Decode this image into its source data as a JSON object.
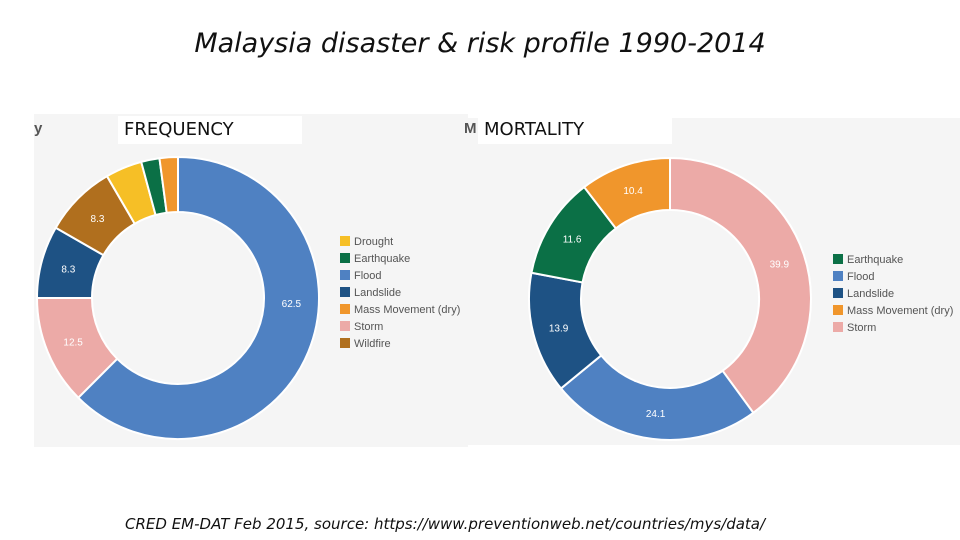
{
  "title": "Malaysia disaster & risk profile 1990-2014",
  "footer": "CRED EM-DAT Feb 2015, source: https://www.preventionweb.net/countries/mys/data/",
  "colors": {
    "Drought": "#f6bf26",
    "Earthquake": "#0b7046",
    "Flood": "#4f81c2",
    "Landslide": "#1e5284",
    "Mass Movement (dry)": "#f0962c",
    "Storm": "#ecaaa7",
    "Wildfire": "#b06f1e"
  },
  "chart_data": [
    {
      "type": "donut",
      "title": "FREQUENCY",
      "cut_label": "y",
      "legend": [
        "Drought",
        "Earthquake",
        "Flood",
        "Landslide",
        "Mass Movement (dry)",
        "Storm",
        "Wildfire"
      ],
      "slices": [
        {
          "name": "Flood",
          "value": 62.5,
          "label": "62.5"
        },
        {
          "name": "Storm",
          "value": 12.5,
          "label": "12.5"
        },
        {
          "name": "Landslide",
          "value": 8.3,
          "label": "8.3"
        },
        {
          "name": "Wildfire",
          "value": 8.3,
          "label": "8.3"
        },
        {
          "name": "Drought",
          "value": 4.2,
          "label": ""
        },
        {
          "name": "Earthquake",
          "value": 2.1,
          "label": ""
        },
        {
          "name": "Mass Movement (dry)",
          "value": 2.1,
          "label": ""
        }
      ]
    },
    {
      "type": "donut",
      "title": "MORTALITY",
      "cut_label": "M",
      "legend": [
        "Earthquake",
        "Flood",
        "Landslide",
        "Mass Movement (dry)",
        "Storm"
      ],
      "slices": [
        {
          "name": "Storm",
          "value": 39.9,
          "label": "39.9"
        },
        {
          "name": "Flood",
          "value": 24.1,
          "label": "24.1"
        },
        {
          "name": "Landslide",
          "value": 13.9,
          "label": "13.9"
        },
        {
          "name": "Earthquake",
          "value": 11.6,
          "label": "11.6"
        },
        {
          "name": "Mass Movement (dry)",
          "value": 10.4,
          "label": "10.4"
        }
      ]
    }
  ]
}
